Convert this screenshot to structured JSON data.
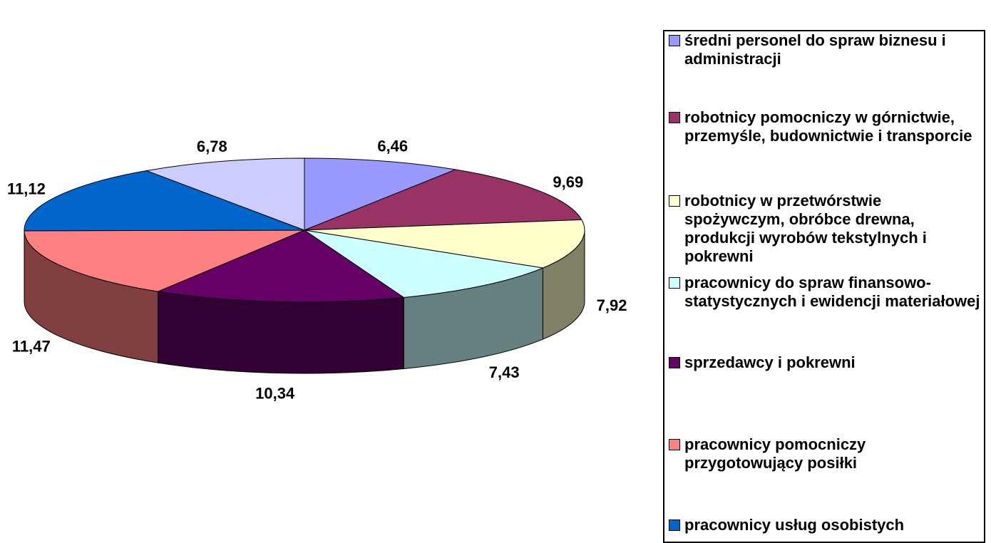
{
  "chart_data": {
    "type": "pie3d",
    "categories": [
      "średni personel do spraw biznesu i administracji",
      "robotnicy pomocniczy w górnictwie, przemyśle, budownictwie i transporcie",
      "robotnicy w przetwórstwie spożywczym, obróbce drewna, produkcji wyrobów tekstylnych i pokrewni",
      "pracownicy do spraw finansowo-statystycznych i ewidencji materiałowej",
      "sprzedawcy i pokrewni",
      "pracownicy pomocniczy przygotowujący posiłki",
      "pracownicy usług osobistych",
      null
    ],
    "values": [
      6.46,
      9.69,
      7.92,
      7.43,
      10.34,
      11.47,
      11.12,
      6.78
    ],
    "value_labels": [
      "6,46",
      "9,69",
      "7,92",
      "7,43",
      "10,34",
      "11,47",
      "11,12",
      "6,78"
    ],
    "colors": [
      "#9999ff",
      "#993366",
      "#ffffcc",
      "#ccffff",
      "#660066",
      "#ff8080",
      "#0066cc",
      "#ccccff"
    ]
  }
}
